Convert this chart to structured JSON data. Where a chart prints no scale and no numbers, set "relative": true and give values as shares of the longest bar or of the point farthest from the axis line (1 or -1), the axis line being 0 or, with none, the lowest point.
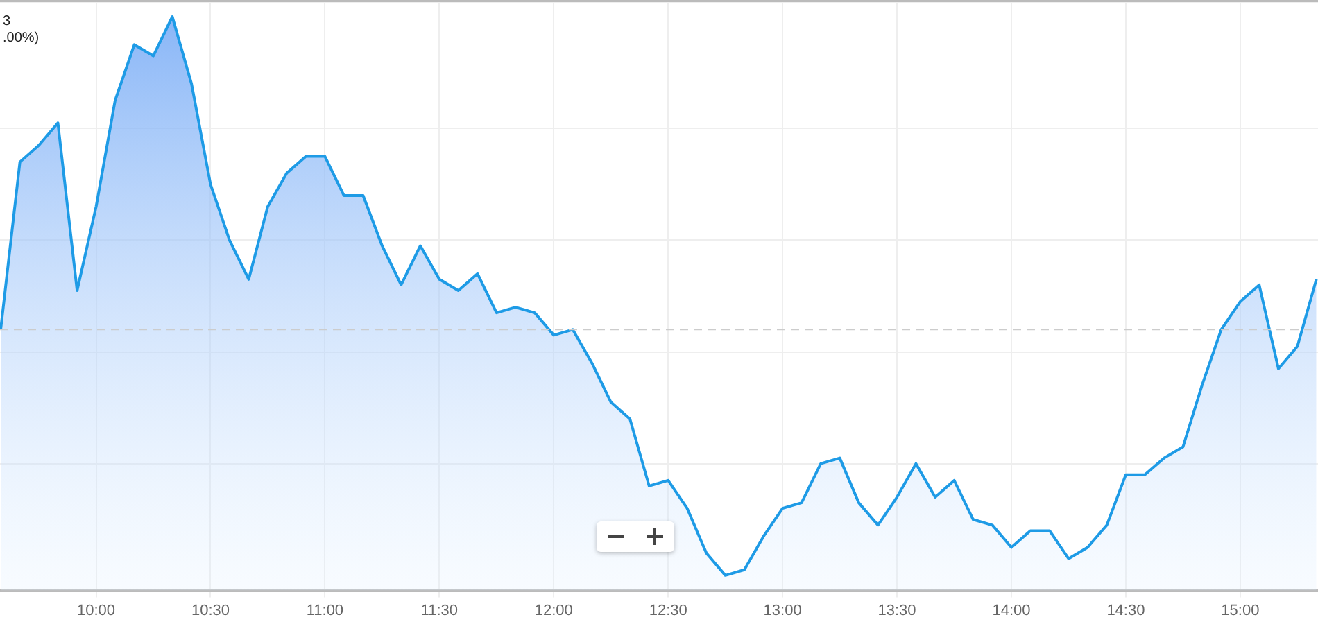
{
  "chart_data": {
    "type": "area",
    "relative": true,
    "annotations": [
      "3",
      ".00%)"
    ],
    "x": [
      9.583,
      9.667,
      9.75,
      9.833,
      9.917,
      10,
      10.083,
      10.167,
      10.25,
      10.333,
      10.417,
      10.5,
      10.583,
      10.667,
      10.75,
      10.833,
      10.917,
      11,
      11.083,
      11.167,
      11.25,
      11.333,
      11.417,
      11.5,
      11.583,
      11.667,
      11.75,
      11.833,
      11.917,
      12,
      12.083,
      12.167,
      12.25,
      12.333,
      12.417,
      12.5,
      12.583,
      12.667,
      12.75,
      12.833,
      12.917,
      13,
      13.083,
      13.167,
      13.25,
      13.333,
      13.417,
      13.5,
      13.583,
      13.667,
      13.75,
      13.833,
      13.917,
      14,
      14.083,
      14.167,
      14.25,
      14.333,
      14.417,
      14.5,
      14.583,
      14.667,
      14.75,
      14.833,
      14.917,
      15,
      15.083,
      15.167,
      15.25,
      15.333
    ],
    "series": [
      {
        "color": "#1e9be6",
        "values": [
          0.44,
          0.74,
          0.77,
          0.81,
          0.51,
          0.66,
          0.85,
          0.95,
          0.93,
          1,
          0.88,
          0.7,
          0.6,
          0.53,
          0.66,
          0.72,
          0.75,
          0.75,
          0.68,
          0.68,
          0.59,
          0.52,
          0.59,
          0.53,
          0.51,
          0.54,
          0.47,
          0.48,
          0.47,
          0.43,
          0.44,
          0.38,
          0.31,
          0.28,
          0.16,
          0.17,
          0.12,
          0.04,
          0,
          0.01,
          0.07,
          0.12,
          0.13,
          0.2,
          0.21,
          0.13,
          0.09,
          0.14,
          0.2,
          0.14,
          0.17,
          0.1,
          0.09,
          0.05,
          0.08,
          0.08,
          0.03,
          0.05,
          0.09,
          0.18,
          0.18,
          0.21,
          0.23,
          0.34,
          0.44,
          0.49,
          0.52,
          0.37,
          0.41,
          0.53
        ]
      }
    ],
    "xlim": [
      9.58,
      15.34
    ],
    "xticks": [
      {
        "value": 10,
        "label": "10:00"
      },
      {
        "value": 10.5,
        "label": "10:30"
      },
      {
        "value": 11,
        "label": "11:00"
      },
      {
        "value": 11.5,
        "label": "11:30"
      },
      {
        "value": 12,
        "label": "12:00"
      },
      {
        "value": 12.5,
        "label": "12:30"
      },
      {
        "value": 13,
        "label": "13:00"
      },
      {
        "value": 13.5,
        "label": "13:30"
      },
      {
        "value": 14,
        "label": "14:00"
      },
      {
        "value": 14.5,
        "label": "14:30"
      },
      {
        "value": 15,
        "label": "15:00"
      }
    ],
    "ref_lines": [
      {
        "axis": "y",
        "value": 0.44,
        "color": "#cccccc",
        "line_style": "dashed"
      }
    ],
    "grid": true,
    "legend": false,
    "marker": "none",
    "line_style": "solid"
  }
}
